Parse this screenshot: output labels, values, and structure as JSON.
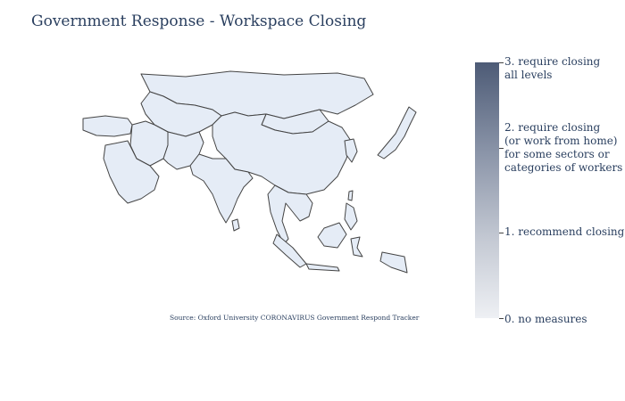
{
  "title": "Government Response - Workspace Closing",
  "source_note": "Source:  Oxford University CORONAVIRUS Government Respond Tracker",
  "map": {
    "region": "Asia",
    "land_color": "#e5ecf6",
    "border_color": "#444444"
  },
  "colorbar": {
    "colors": [
      "#eef0f4",
      "#c5cad4",
      "#8a94a8",
      "#4d5b76"
    ],
    "range": [
      0,
      3
    ],
    "ticks": [
      {
        "value": 3,
        "label": "3. require closing\nall levels"
      },
      {
        "value": 2,
        "label": "2. require closing\n (or work from home)\n for some sectors or\ncategories of workers"
      },
      {
        "value": 1,
        "label": "1. recommend closing"
      },
      {
        "value": 0,
        "label": "0. no measures"
      }
    ]
  }
}
